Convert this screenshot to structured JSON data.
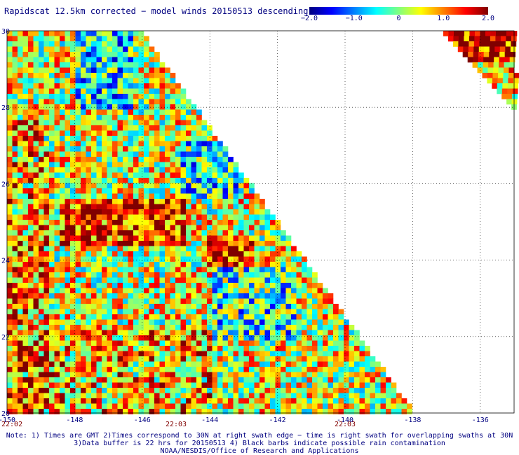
{
  "title": "Rapidscat 12.5km corrected − model winds 20150513 descending",
  "colorbar": {
    "ticks": [
      "−2.0",
      "−1.0",
      "0",
      "1.0",
      "2.0"
    ],
    "tick_values": [
      -2.0,
      -1.0,
      0,
      1.0,
      2.0
    ],
    "colors": [
      "#000080",
      "#0000ff",
      "#0080ff",
      "#00ffff",
      "#80ff80",
      "#ffff00",
      "#ff8000",
      "#ff0000",
      "#800000"
    ]
  },
  "map": {
    "lon_range": [
      -150,
      -135
    ],
    "lat_range": [
      20,
      30
    ],
    "lon_ticks": [
      "-150",
      "-148",
      "-146",
      "-144",
      "-142",
      "-140",
      "-138",
      "-136"
    ],
    "lon_tick_values": [
      -150,
      -148,
      -146,
      -144,
      -142,
      -140,
      -138,
      -136
    ],
    "lat_ticks": [
      "20",
      "22",
      "24",
      "26",
      "28",
      "30"
    ],
    "lat_tick_values": [
      20,
      22,
      24,
      26,
      28,
      30
    ],
    "times": [
      {
        "label": "22:02",
        "lon": -150
      },
      {
        "label": "22:03",
        "lon": -145
      },
      {
        "label": "22:03",
        "lon": -140
      }
    ]
  },
  "notes": [
    "Note: 1) Times are GMT 2)Times correspond to 30N at right swath edge − time is right swath for overlapping swaths at 30N",
    "3)Data buffer is 22 hrs for 20150513 4) Black barbs indicate possible rain contamination",
    "NOAA/NESDIS/Office of Research and Applications"
  ]
}
